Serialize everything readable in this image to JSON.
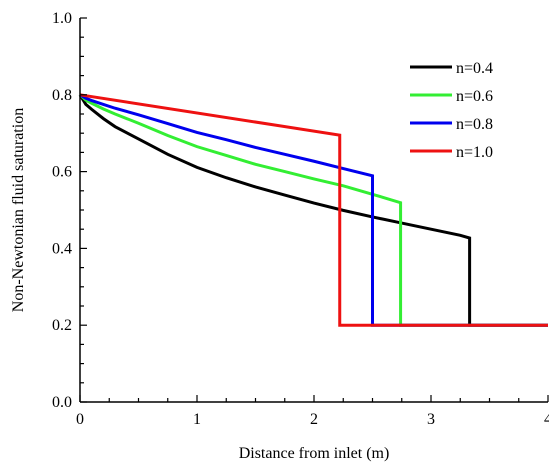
{
  "chart_data": {
    "type": "line",
    "title": "",
    "xlabel": "Distance from inlet (m)",
    "ylabel": "Non-Newtonian fluid saturation",
    "xlim": [
      0,
      4
    ],
    "ylim": [
      0,
      1.0
    ],
    "xticks": [
      0,
      1,
      2,
      3,
      4
    ],
    "xtick_labels": [
      "0",
      "1",
      "2",
      "3",
      "4"
    ],
    "yticks": [
      0,
      0.2,
      0.4,
      0.6,
      0.8,
      1.0
    ],
    "ytick_labels": [
      "0.0",
      "0.2",
      "0.4",
      "0.6",
      "0.8",
      "1.0"
    ],
    "grid": false,
    "legend_position": "top-right",
    "series": [
      {
        "name": "n=0.4",
        "color": "#000000",
        "x": [
          0,
          0.05,
          0.1,
          0.2,
          0.3,
          0.5,
          0.75,
          1.0,
          1.25,
          1.5,
          1.75,
          2.0,
          2.25,
          2.5,
          2.75,
          3.0,
          3.25,
          3.33,
          3.33,
          4.0
        ],
        "y": [
          0.8,
          0.775,
          0.762,
          0.738,
          0.717,
          0.685,
          0.645,
          0.611,
          0.584,
          0.56,
          0.539,
          0.518,
          0.499,
          0.482,
          0.466,
          0.45,
          0.434,
          0.427,
          0.2,
          0.2
        ]
      },
      {
        "name": "n=0.6",
        "color": "#33ee33",
        "x": [
          0,
          0.05,
          0.1,
          0.2,
          0.3,
          0.5,
          0.75,
          1.0,
          1.25,
          1.5,
          1.75,
          2.0,
          2.25,
          2.5,
          2.74,
          2.74,
          4.0
        ],
        "y": [
          0.8,
          0.786,
          0.778,
          0.763,
          0.75,
          0.726,
          0.694,
          0.665,
          0.642,
          0.619,
          0.6,
          0.581,
          0.563,
          0.541,
          0.519,
          0.2,
          0.2
        ]
      },
      {
        "name": "n=0.8",
        "color": "#0000ee",
        "x": [
          0,
          0.05,
          0.1,
          0.2,
          0.3,
          0.5,
          0.75,
          1.0,
          1.25,
          1.5,
          1.75,
          2.0,
          2.25,
          2.5,
          2.5,
          4.0
        ],
        "y": [
          0.8,
          0.791,
          0.785,
          0.775,
          0.765,
          0.748,
          0.725,
          0.702,
          0.683,
          0.663,
          0.645,
          0.627,
          0.608,
          0.589,
          0.2,
          0.2
        ]
      },
      {
        "name": "n=1.0",
        "color": "#ee1111",
        "x": [
          0,
          2.22,
          2.22,
          4.0
        ],
        "y": [
          0.8,
          0.695,
          0.2,
          0.2
        ]
      }
    ]
  }
}
